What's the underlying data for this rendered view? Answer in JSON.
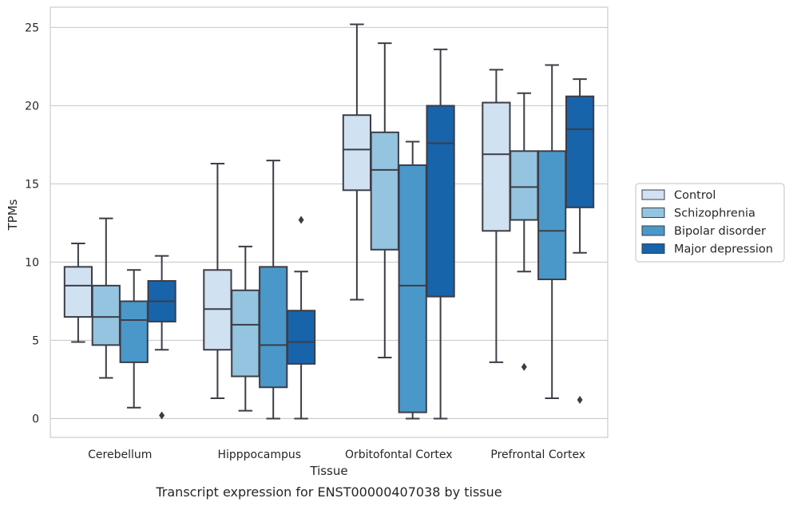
{
  "chart_data": {
    "type": "box",
    "title": "",
    "caption": "Transcript expression for ENST00000407038 by tissue",
    "xlabel": "Tissue",
    "ylabel": "TPMs",
    "ylim": [
      -1.2,
      26.3
    ],
    "yticks": [
      0,
      5,
      10,
      15,
      20,
      25
    ],
    "grid": true,
    "legend_position": "right",
    "categories": [
      "Cerebellum",
      "Hipppocampus",
      "Orbitofontal Cortex",
      "Prefrontal Cortex"
    ],
    "series": [
      {
        "name": "Control",
        "color": "#d0e1f2",
        "boxes": [
          {
            "whislo": 4.9,
            "q1": 6.5,
            "med": 8.5,
            "q3": 9.7,
            "whishi": 11.2,
            "fliers": []
          },
          {
            "whislo": 1.3,
            "q1": 4.4,
            "med": 7.0,
            "q3": 9.5,
            "whishi": 16.3,
            "fliers": []
          },
          {
            "whislo": 7.6,
            "q1": 14.6,
            "med": 17.2,
            "q3": 19.4,
            "whishi": 25.2,
            "fliers": []
          },
          {
            "whislo": 3.6,
            "q1": 12.0,
            "med": 16.9,
            "q3": 20.2,
            "whishi": 22.3,
            "fliers": []
          }
        ]
      },
      {
        "name": "Schizophrenia",
        "color": "#94c4df",
        "boxes": [
          {
            "whislo": 2.6,
            "q1": 4.7,
            "med": 6.5,
            "q3": 8.5,
            "whishi": 12.8,
            "fliers": []
          },
          {
            "whislo": 0.5,
            "q1": 2.7,
            "med": 6.0,
            "q3": 8.2,
            "whishi": 11.0,
            "fliers": []
          },
          {
            "whislo": 3.9,
            "q1": 10.8,
            "med": 15.9,
            "q3": 18.3,
            "whishi": 24.0,
            "fliers": []
          },
          {
            "whislo": 9.4,
            "q1": 12.7,
            "med": 14.8,
            "q3": 17.1,
            "whishi": 20.8,
            "fliers": [
              3.3
            ]
          }
        ]
      },
      {
        "name": "Bipolar disorder",
        "color": "#4a98c9",
        "boxes": [
          {
            "whislo": 0.7,
            "q1": 3.6,
            "med": 6.3,
            "q3": 7.5,
            "whishi": 9.5,
            "fliers": []
          },
          {
            "whislo": 0.0,
            "q1": 2.0,
            "med": 4.7,
            "q3": 9.7,
            "whishi": 16.5,
            "fliers": []
          },
          {
            "whislo": 0.0,
            "q1": 0.4,
            "med": 8.5,
            "q3": 16.2,
            "whishi": 17.7,
            "fliers": []
          },
          {
            "whislo": 1.3,
            "q1": 8.9,
            "med": 12.0,
            "q3": 17.1,
            "whishi": 22.6,
            "fliers": []
          }
        ]
      },
      {
        "name": "Major depression",
        "color": "#1764ab",
        "boxes": [
          {
            "whislo": 4.4,
            "q1": 6.2,
            "med": 7.5,
            "q3": 8.8,
            "whishi": 10.4,
            "fliers": [
              0.2
            ]
          },
          {
            "whislo": 0.0,
            "q1": 3.5,
            "med": 4.9,
            "q3": 6.9,
            "whishi": 9.4,
            "fliers": [
              12.7
            ]
          },
          {
            "whislo": 0.0,
            "q1": 7.8,
            "med": 17.6,
            "q3": 20.0,
            "whishi": 23.6,
            "fliers": []
          },
          {
            "whislo": 10.6,
            "q1": 13.5,
            "med": 18.5,
            "q3": 20.6,
            "whishi": 21.7,
            "fliers": [
              1.2
            ]
          }
        ]
      }
    ]
  }
}
